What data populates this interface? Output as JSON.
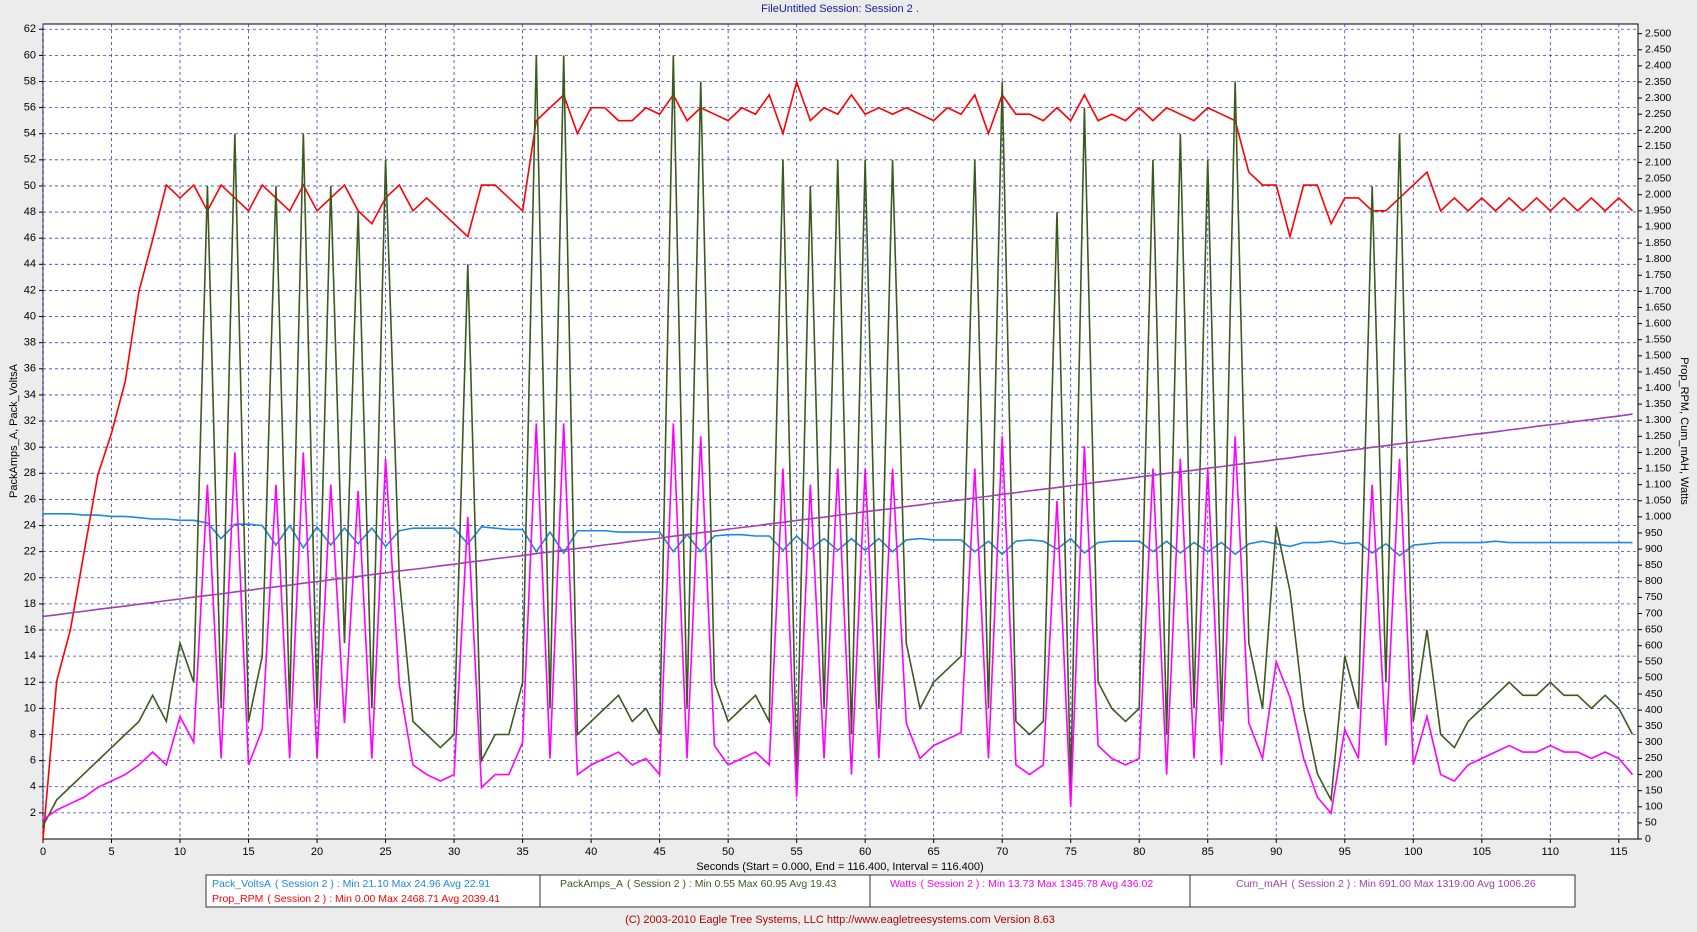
{
  "chart_data": {
    "type": "line",
    "title": "FileUntitled   Session: Session 2 .",
    "x_label": "Seconds (Start = 0.000,  End = 116.400,  Interval = 116.400)",
    "y_label": "PackAmps_A, Pack_VoltsA",
    "y2_label": "Prop_RPM, Cum_mAH, Watts",
    "footer": "(C) 2003-2010 Eagle Tree Systems, LLC      http://www.eagletreesystems.com     Version 8.63",
    "grid": true,
    "xlim": [
      0,
      116.4
    ],
    "xticks": [
      0,
      5,
      10,
      15,
      20,
      25,
      30,
      35,
      40,
      45,
      50,
      55,
      60,
      65,
      70,
      75,
      80,
      85,
      90,
      95,
      100,
      105,
      110,
      115
    ],
    "ylim": [
      0,
      62.4
    ],
    "yticks": [
      2,
      4,
      6,
      8,
      10,
      12,
      14,
      16,
      18,
      20,
      22,
      24,
      26,
      28,
      30,
      32,
      34,
      36,
      38,
      40,
      42,
      44,
      46,
      48,
      50,
      52,
      54,
      56,
      58,
      60,
      62
    ],
    "y2lim": [
      0,
      2530
    ],
    "y2ticks": [
      0,
      50,
      100,
      150,
      200,
      250,
      300,
      350,
      400,
      450,
      500,
      550,
      600,
      650,
      700,
      750,
      800,
      850,
      900,
      950,
      {
        "value": 1000,
        "label": "1.000"
      },
      {
        "value": 1050,
        "label": "1.050"
      },
      {
        "value": 1100,
        "label": "1.100"
      },
      {
        "value": 1150,
        "label": "1.150"
      },
      {
        "value": 1200,
        "label": "1.200"
      },
      {
        "value": 1250,
        "label": "1.250"
      },
      {
        "value": 1300,
        "label": "1.300"
      },
      {
        "value": 1350,
        "label": "1.350"
      },
      {
        "value": 1400,
        "label": "1.400"
      },
      {
        "value": 1450,
        "label": "1.450"
      },
      {
        "value": 1500,
        "label": "1.500"
      },
      {
        "value": 1550,
        "label": "1.550"
      },
      {
        "value": 1600,
        "label": "1.600"
      },
      {
        "value": 1650,
        "label": "1.650"
      },
      {
        "value": 1700,
        "label": "1.700"
      },
      {
        "value": 1750,
        "label": "1.750"
      },
      {
        "value": 1800,
        "label": "1.800"
      },
      {
        "value": 1850,
        "label": "1.850"
      },
      {
        "value": 1900,
        "label": "1.900"
      },
      {
        "value": 1950,
        "label": "1.950"
      },
      {
        "value": 2000,
        "label": "2.000"
      },
      {
        "value": 2050,
        "label": "2.050"
      },
      {
        "value": 2100,
        "label": "2.100"
      },
      {
        "value": 2150,
        "label": "2.150"
      },
      {
        "value": 2200,
        "label": "2.200"
      },
      {
        "value": 2250,
        "label": "2.250"
      },
      {
        "value": 2300,
        "label": "2.300"
      },
      {
        "value": 2350,
        "label": "2.350"
      },
      {
        "value": 2400,
        "label": "2.400"
      },
      {
        "value": 2450,
        "label": "2.450"
      },
      {
        "value": 2500,
        "label": "2.500"
      }
    ],
    "x": [
      0,
      1,
      2,
      3,
      4,
      5,
      6,
      7,
      8,
      9,
      10,
      11,
      12,
      13,
      14,
      15,
      16,
      17,
      18,
      19,
      20,
      21,
      22,
      23,
      24,
      25,
      26,
      27,
      28,
      29,
      30,
      31,
      32,
      33,
      34,
      35,
      36,
      37,
      38,
      39,
      40,
      41,
      42,
      43,
      44,
      45,
      46,
      47,
      48,
      49,
      50,
      51,
      52,
      53,
      54,
      55,
      56,
      57,
      58,
      59,
      60,
      61,
      62,
      63,
      64,
      65,
      66,
      67,
      68,
      69,
      70,
      71,
      72,
      73,
      74,
      75,
      76,
      77,
      78,
      79,
      80,
      81,
      82,
      83,
      84,
      85,
      86,
      87,
      88,
      89,
      90,
      91,
      92,
      93,
      94,
      95,
      96,
      97,
      98,
      99,
      100,
      101,
      102,
      103,
      104,
      105,
      106,
      107,
      108,
      109,
      110,
      111,
      112,
      113,
      114,
      115,
      116
    ],
    "series": [
      {
        "name": "Pack_VoltsA",
        "summary": "( Session 2 ) : Min 21.10   Max 24.96   Avg 22.91",
        "color": "#1e88e0",
        "axis": "y",
        "values": [
          24.9,
          24.9,
          24.9,
          24.8,
          24.8,
          24.7,
          24.7,
          24.6,
          24.5,
          24.5,
          24.4,
          24.4,
          24.2,
          23.0,
          24.1,
          24.1,
          24.0,
          22.5,
          24.0,
          22.3,
          23.9,
          22.5,
          23.8,
          22.6,
          23.8,
          22.4,
          23.6,
          23.8,
          23.8,
          23.8,
          23.8,
          22.6,
          23.9,
          23.8,
          23.7,
          23.7,
          22.0,
          23.5,
          21.9,
          23.6,
          23.6,
          23.6,
          23.5,
          23.5,
          23.5,
          23.5,
          22.0,
          23.3,
          22.0,
          23.2,
          23.3,
          23.3,
          23.2,
          23.2,
          22.1,
          23.2,
          22.2,
          23.0,
          22.1,
          23.0,
          22.1,
          23.0,
          22.0,
          22.9,
          23.0,
          22.9,
          22.9,
          22.9,
          22.0,
          22.8,
          21.8,
          22.8,
          22.9,
          22.8,
          22.2,
          23.0,
          21.9,
          22.7,
          22.8,
          22.8,
          22.8,
          22.0,
          22.8,
          21.9,
          22.7,
          22.0,
          22.7,
          21.8,
          22.6,
          22.8,
          22.6,
          22.4,
          22.7,
          22.7,
          22.8,
          22.6,
          22.7,
          21.9,
          22.6,
          21.7,
          22.5,
          22.6,
          22.7,
          22.7,
          22.7,
          22.7,
          22.8,
          22.7,
          22.7,
          22.7,
          22.7,
          22.7,
          22.7,
          22.7,
          22.7,
          22.7,
          22.7
        ]
      },
      {
        "name": "Prop_RPM",
        "summary": "( Session 2 ) : Min 0.00   Max 2468.71   Avg 2039.41",
        "color": "#ff0000",
        "axis": "y2",
        "values": [
          0,
          490,
          650,
          890,
          1130,
          1260,
          1420,
          1700,
          1860,
          2030,
          1990,
          2030,
          1950,
          2030,
          1990,
          1950,
          2030,
          1990,
          1950,
          2030,
          1950,
          1990,
          2030,
          1950,
          1910,
          1990,
          2030,
          1950,
          1990,
          1950,
          1910,
          1870,
          2030,
          2030,
          1990,
          1950,
          2230,
          2270,
          2310,
          2190,
          2270,
          2270,
          2230,
          2230,
          2270,
          2250,
          2310,
          2230,
          2270,
          2250,
          2230,
          2270,
          2250,
          2310,
          2190,
          2350,
          2230,
          2270,
          2250,
          2310,
          2250,
          2270,
          2250,
          2270,
          2250,
          2230,
          2270,
          2250,
          2310,
          2190,
          2310,
          2250,
          2250,
          2230,
          2270,
          2230,
          2310,
          2230,
          2250,
          2230,
          2270,
          2230,
          2270,
          2250,
          2230,
          2270,
          2250,
          2230,
          2070,
          2030,
          2030,
          1870,
          2030,
          2030,
          1910,
          1990,
          1990,
          1950,
          1950,
          1990,
          2030,
          2070,
          1950,
          1990,
          1950,
          1990,
          1950,
          1990,
          1950,
          1990,
          1950,
          1990,
          1950,
          1990,
          1950,
          1990,
          1950
        ]
      },
      {
        "name": "PackAmps_A",
        "summary": "( Session 2 ) : Min 0.55   Max 60.95   Avg 19.43",
        "color": "#3d5a1e",
        "axis": "y",
        "values": [
          1,
          3,
          4,
          5,
          6,
          7,
          8,
          9,
          11,
          9,
          15,
          12,
          50,
          10,
          54,
          9,
          14,
          50,
          10,
          54,
          10,
          50,
          15,
          48,
          10,
          52,
          20,
          9,
          8,
          7,
          8,
          44,
          6,
          8,
          8,
          12,
          60,
          10,
          60,
          8,
          9,
          10,
          11,
          9,
          10,
          8,
          60,
          10,
          58,
          12,
          9,
          10,
          11,
          9,
          52,
          5,
          50,
          10,
          52,
          8,
          52,
          10,
          52,
          15,
          10,
          12,
          13,
          14,
          52,
          10,
          58,
          9,
          8,
          9,
          48,
          4,
          56,
          12,
          10,
          9,
          10,
          52,
          8,
          54,
          10,
          52,
          9,
          58,
          15,
          10,
          24,
          19,
          10,
          5,
          3,
          14,
          10,
          50,
          12,
          54,
          9,
          16,
          8,
          7,
          9,
          10,
          11,
          12,
          11,
          11,
          12,
          11,
          11,
          10,
          11,
          10,
          8
        ]
      },
      {
        "name": "Watts",
        "summary": "( Session 2 ) : Min 13.73   Max 1345.78   Avg 436.02",
        "color": "#ff00ff",
        "axis": "y2",
        "values": [
          60,
          90,
          110,
          130,
          160,
          180,
          200,
          230,
          270,
          230,
          380,
          300,
          1100,
          250,
          1200,
          230,
          340,
          1100,
          250,
          1200,
          250,
          1100,
          360,
          1080,
          250,
          1180,
          480,
          230,
          200,
          180,
          200,
          1000,
          160,
          200,
          200,
          300,
          1290,
          250,
          1290,
          200,
          230,
          250,
          270,
          230,
          250,
          200,
          1290,
          250,
          1250,
          290,
          230,
          250,
          270,
          230,
          1150,
          130,
          1100,
          250,
          1150,
          200,
          1150,
          250,
          1150,
          360,
          250,
          290,
          310,
          330,
          1150,
          250,
          1250,
          230,
          200,
          230,
          1050,
          100,
          1220,
          290,
          250,
          230,
          250,
          1150,
          200,
          1180,
          250,
          1150,
          230,
          1250,
          360,
          250,
          550,
          440,
          250,
          130,
          80,
          340,
          250,
          1100,
          290,
          1180,
          230,
          380,
          200,
          180,
          230,
          250,
          270,
          290,
          270,
          270,
          290,
          270,
          270,
          250,
          270,
          250,
          200
        ]
      },
      {
        "name": "Cum_mAH",
        "summary": "( Session 2 ) : Min 691.00   Max 1319.00   Avg 1006.26",
        "color": "#a040b0",
        "axis": "y2",
        "values": [
          691,
          696,
          702,
          707,
          713,
          718,
          723,
          729,
          734,
          740,
          745,
          751,
          756,
          761,
          767,
          772,
          778,
          783,
          788,
          794,
          799,
          805,
          810,
          815,
          821,
          826,
          832,
          837,
          842,
          848,
          853,
          859,
          864,
          870,
          875,
          880,
          886,
          891,
          897,
          902,
          907,
          913,
          918,
          924,
          929,
          934,
          940,
          945,
          951,
          956,
          962,
          967,
          972,
          978,
          983,
          989,
          994,
          999,
          1005,
          1010,
          1016,
          1021,
          1026,
          1032,
          1037,
          1043,
          1048,
          1053,
          1059,
          1064,
          1070,
          1075,
          1081,
          1086,
          1091,
          1097,
          1102,
          1108,
          1113,
          1118,
          1124,
          1129,
          1135,
          1140,
          1145,
          1151,
          1156,
          1162,
          1167,
          1172,
          1178,
          1183,
          1189,
          1194,
          1199,
          1205,
          1210,
          1216,
          1221,
          1227,
          1232,
          1237,
          1243,
          1248,
          1254,
          1259,
          1264,
          1270,
          1275,
          1281,
          1286,
          1291,
          1297,
          1302,
          1308,
          1313,
          1319
        ]
      }
    ]
  }
}
